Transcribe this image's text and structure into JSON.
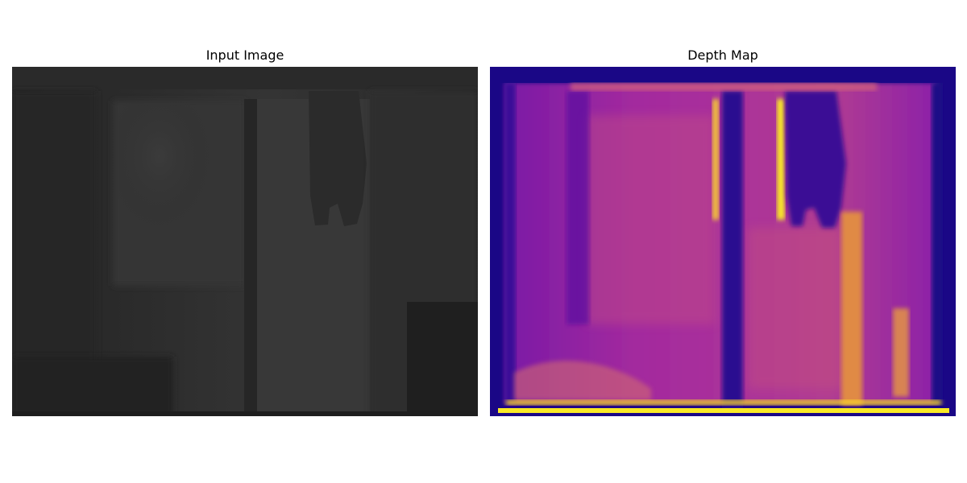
{
  "figure": {
    "panels": [
      {
        "title": "Input Image",
        "kind": "grayscale-depth-render"
      },
      {
        "title": "Depth Map",
        "kind": "plasma-colormap"
      }
    ],
    "colors": {
      "input_dark": "#1e1e1e",
      "input_mid": "#2c2c2c",
      "input_light": "#3a3a3a",
      "plasma_dark": "#1a0786",
      "plasma_purple": "#8a1dab",
      "plasma_magenta": "#b93a8f",
      "plasma_orange": "#e77b4a",
      "plasma_yellow": "#f9e926"
    }
  }
}
